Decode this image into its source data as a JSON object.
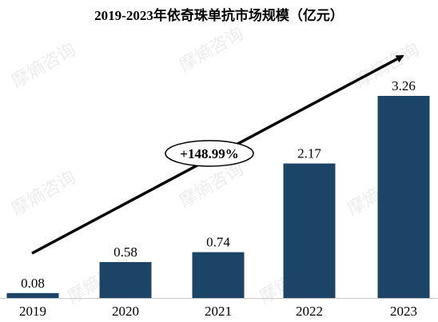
{
  "watermark": "摩熵咨询",
  "chart_data": {
    "type": "bar",
    "title": "2019-2023年依奇珠单抗市场规模（亿元）",
    "categories": [
      "2019",
      "2020",
      "2021",
      "2022",
      "2023"
    ],
    "values": [
      0.08,
      0.58,
      0.74,
      2.17,
      3.26
    ],
    "value_labels": [
      "0.08",
      "0.58",
      "0.74",
      "2.17",
      "3.26"
    ],
    "ylim": [
      0,
      3.26
    ],
    "xlabel": "",
    "ylabel": "",
    "grid": false,
    "bar_color": "#1c4466",
    "annotation": {
      "text": "+148.99%",
      "type": "growth-arrow"
    }
  }
}
